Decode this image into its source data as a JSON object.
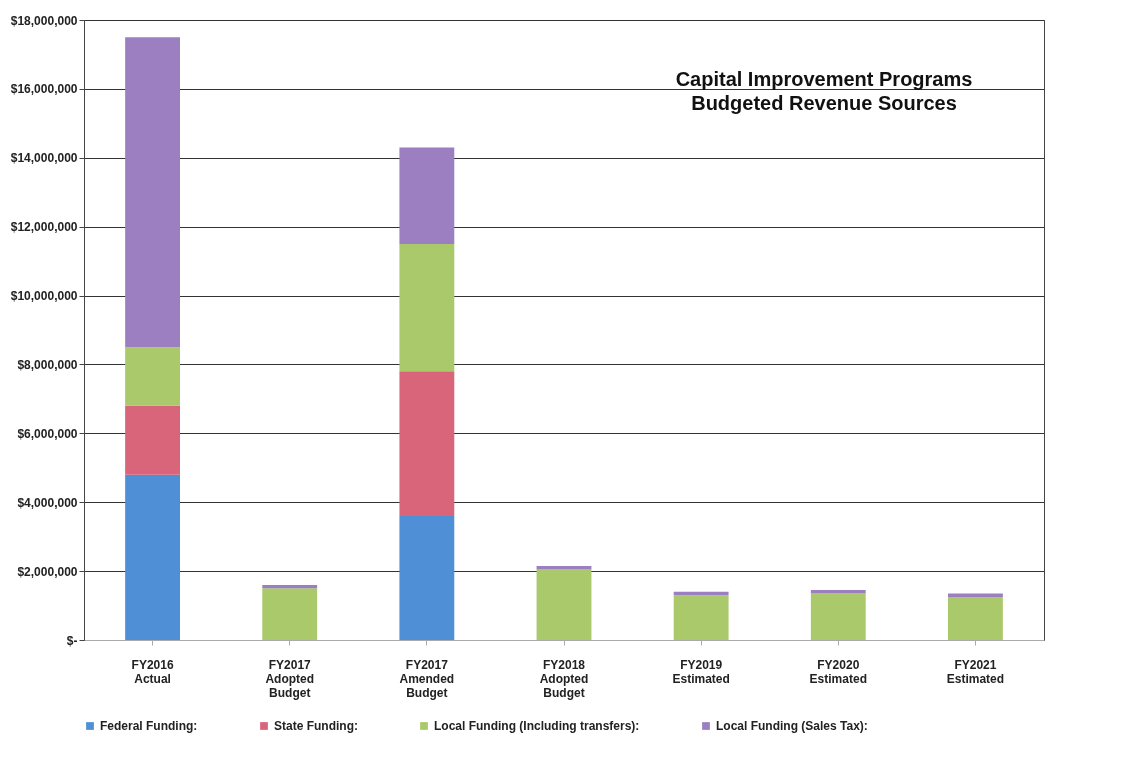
{
  "chart_data": {
    "type": "bar",
    "stacked": true,
    "title": "Capital Improvement Programs",
    "subtitle": "Budgeted Revenue Sources",
    "categories": [
      "FY2016\nActual",
      "FY2017\nAdopted\nBudget",
      "FY2017\nAmended\nBudget",
      "FY2018\nAdopted\nBudget",
      "FY2019\nEstimated",
      "FY2020\nEstimated",
      "FY2021\nEstimated"
    ],
    "series": [
      {
        "name": "Federal Funding:",
        "color": "#4f8fd6",
        "values": [
          4800000,
          0,
          3600000,
          0,
          0,
          0,
          0
        ]
      },
      {
        "name": "State Funding:",
        "color": "#d9657a",
        "values": [
          2000000,
          0,
          4200000,
          0,
          0,
          0,
          0
        ]
      },
      {
        "name": "Local Funding (Including transfers):",
        "color": "#a9c96a",
        "values": [
          1700000,
          1500000,
          3700000,
          2050000,
          1300000,
          1350000,
          1250000
        ]
      },
      {
        "name": "Local Funding (Sales Tax):",
        "color": "#9b7fc0",
        "values": [
          9000000,
          100000,
          2800000,
          100000,
          100000,
          100000,
          100000
        ]
      }
    ],
    "ylim": [
      0,
      18000000
    ],
    "yticks": [
      {
        "value": 0,
        "label": "$-"
      },
      {
        "value": 2000000,
        "label": "$2,000,000"
      },
      {
        "value": 4000000,
        "label": "$4,000,000"
      },
      {
        "value": 6000000,
        "label": "$6,000,000"
      },
      {
        "value": 8000000,
        "label": "$8,000,000"
      },
      {
        "value": 10000000,
        "label": "$10,000,000"
      },
      {
        "value": 12000000,
        "label": "$12,000,000"
      },
      {
        "value": 14000000,
        "label": "$14,000,000"
      },
      {
        "value": 16000000,
        "label": "$16,000,000"
      },
      {
        "value": 18000000,
        "label": "$18,000,000"
      }
    ],
    "grid": "y",
    "legend": "bottom"
  }
}
